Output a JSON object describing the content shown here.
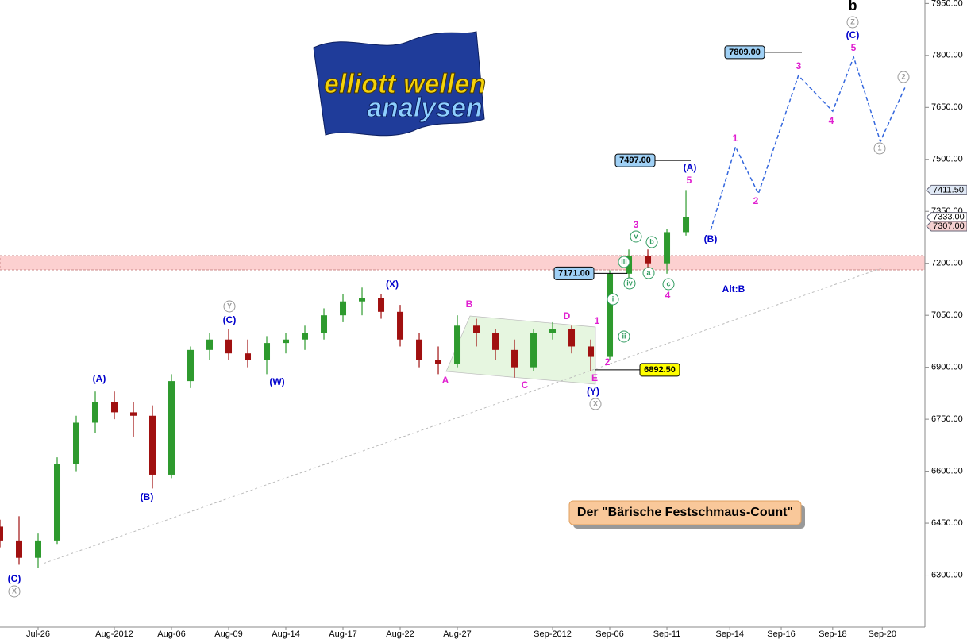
{
  "chart_data": {
    "type": "candlestick",
    "x": [
      -2,
      -1,
      0,
      1,
      2,
      3,
      4,
      5,
      6,
      7,
      8,
      9,
      10,
      11,
      12,
      13,
      14,
      15,
      16,
      17,
      18,
      19,
      20,
      21,
      22,
      23,
      24,
      25,
      26,
      27,
      28,
      29,
      30,
      31,
      32,
      33,
      34
    ],
    "open": [
      6440,
      6400,
      6350,
      6400,
      6620,
      6740,
      6800,
      6770,
      6760,
      6590,
      6860,
      6950,
      6980,
      6940,
      6920,
      6970,
      6980,
      7000,
      7050,
      7090,
      7100,
      7060,
      6980,
      6920,
      6910,
      7020,
      7000,
      6950,
      6900,
      7000,
      7010,
      6960,
      6930,
      7170,
      7220,
      7200,
      7290
    ],
    "high": [
      6460,
      6470,
      6420,
      6640,
      6760,
      6830,
      6830,
      6800,
      6790,
      6880,
      6960,
      7000,
      7010,
      6980,
      6990,
      7000,
      7020,
      7070,
      7110,
      7130,
      7110,
      7080,
      7000,
      6960,
      7050,
      7040,
      7010,
      6980,
      7010,
      7030,
      7020,
      6980,
      7180,
      7240,
      7240,
      7300,
      7411.5
    ],
    "low": [
      6380,
      6330,
      6320,
      6390,
      6600,
      6710,
      6750,
      6700,
      6550,
      6580,
      6840,
      6920,
      6920,
      6900,
      6880,
      6940,
      6950,
      6980,
      7030,
      7050,
      7040,
      6960,
      6900,
      6880,
      6900,
      6960,
      6920,
      6870,
      6890,
      6980,
      6940,
      6890,
      6920,
      7150,
      7180,
      7170,
      7280
    ],
    "close": [
      6400,
      6350,
      6400,
      6620,
      6740,
      6800,
      6770,
      6760,
      6590,
      6860,
      6950,
      6980,
      6940,
      6920,
      6970,
      6980,
      7000,
      7050,
      7090,
      7100,
      7060,
      6980,
      6920,
      6910,
      7020,
      7000,
      6950,
      6900,
      7000,
      7010,
      6960,
      6930,
      7170,
      7220,
      7200,
      7290,
      7333
    ],
    "up_color": "#2e9a2e",
    "down_color": "#a01010",
    "xlim": [
      -2,
      46.54
    ],
    "xticks": [
      {
        "value": 0,
        "label": "Jul-26"
      },
      {
        "value": 4,
        "label": "Aug-2012"
      },
      {
        "value": 7,
        "label": "Aug-06"
      },
      {
        "value": 10,
        "label": "Aug-09"
      },
      {
        "value": 13,
        "label": "Aug-14"
      },
      {
        "value": 16,
        "label": "Aug-17"
      },
      {
        "value": 19,
        "label": "Aug-22"
      },
      {
        "value": 22,
        "label": "Aug-27"
      },
      {
        "value": 27,
        "label": "Sep-2012"
      },
      {
        "value": 30,
        "label": "Sep-06"
      },
      {
        "value": 33,
        "label": "Sep-11"
      },
      {
        "value": 36.3,
        "label": "Sep-14"
      },
      {
        "value": 39,
        "label": "Sep-16"
      },
      {
        "value": 41.7,
        "label": "Sep-18"
      },
      {
        "value": 44.3,
        "label": "Sep-20"
      }
    ],
    "ylim": [
      6150,
      7960
    ],
    "yticks": [
      {
        "value": 6300,
        "label": "6300.00"
      },
      {
        "value": 6450,
        "label": "6450.00"
      },
      {
        "value": 6600,
        "label": "6600.00"
      },
      {
        "value": 6750,
        "label": "6750.00"
      },
      {
        "value": 6900,
        "label": "6900.00"
      },
      {
        "value": 7050,
        "label": "7050.00"
      },
      {
        "value": 7200,
        "label": "7200.00"
      },
      {
        "value": 7350,
        "label": "7350.00"
      },
      {
        "value": 7500,
        "label": "7500.00"
      },
      {
        "value": 7650,
        "label": "7650.00"
      },
      {
        "value": 7800,
        "label": "7800.00"
      },
      {
        "value": 7950,
        "label": "7950.00"
      }
    ],
    "price_tags": [
      {
        "value": 7411.5,
        "label": "7411.50",
        "color": "#dfe8f5"
      },
      {
        "value": 7333,
        "label": "7333.00",
        "color": "#ffffff"
      },
      {
        "value": 7307,
        "label": "7307.00",
        "color": "#f5d0d0"
      }
    ],
    "levels": [
      {
        "value": 7809,
        "label": "7809.00",
        "color": "#9fd0f5"
      },
      {
        "value": 7497,
        "label": "7497.00",
        "color": "#9fd0f5"
      },
      {
        "value": 7171,
        "label": "7171.00",
        "color": "#9fd0f5"
      },
      {
        "value": 6892.5,
        "label": "6892.50",
        "color": "#ffff00"
      }
    ],
    "forecast": {
      "x": [
        35.3,
        36.6,
        37.8,
        39.9,
        41.7,
        42.8,
        44.2,
        45.5
      ],
      "values": [
        7296,
        7536,
        7401,
        7742,
        7639,
        7795,
        7552,
        7708
      ],
      "color": "#3366dd"
    },
    "trendline": {
      "x": [
        0.3,
        44.25
      ],
      "values": [
        6334,
        7186
      ],
      "color": "#bbbbbb"
    },
    "wave_labels": [
      {
        "text": "(C)",
        "color": "#0000cc"
      },
      {
        "text": "X",
        "color": "#999999",
        "circle": true
      },
      {
        "text": "(A)",
        "color": "#0000cc"
      },
      {
        "text": "(B)",
        "color": "#0000cc"
      },
      {
        "text": "Y",
        "color": "#999999",
        "circle": true
      },
      {
        "text": "(C)",
        "color": "#0000cc"
      },
      {
        "text": "(W)",
        "color": "#0000cc"
      },
      {
        "text": "(X)",
        "color": "#0000cc"
      },
      {
        "text": "A",
        "color": "#e020d0"
      },
      {
        "text": "B",
        "color": "#e020d0"
      },
      {
        "text": "C",
        "color": "#e020d0"
      },
      {
        "text": "D",
        "color": "#e020d0"
      },
      {
        "text": "E",
        "color": "#e020d0"
      },
      {
        "text": "(Y)",
        "color": "#0000cc"
      },
      {
        "text": "X",
        "color": "#999999",
        "circle": true
      },
      {
        "text": "1",
        "color": "#e020d0"
      },
      {
        "text": "2",
        "color": "#e020d0"
      },
      {
        "text": "i",
        "color": "#2e9a5e",
        "circle": true
      },
      {
        "text": "ii",
        "color": "#2e9a5e",
        "circle": true
      },
      {
        "text": "iii",
        "color": "#2e9a5e",
        "circle": true
      },
      {
        "text": "iv",
        "color": "#2e9a5e",
        "circle": true
      },
      {
        "text": "v",
        "color": "#2e9a5e",
        "circle": true
      },
      {
        "text": "3",
        "color": "#e020d0"
      },
      {
        "text": "a",
        "color": "#2e9a5e",
        "circle": true
      },
      {
        "text": "b",
        "color": "#2e9a5e",
        "circle": true
      },
      {
        "text": "c",
        "color": "#2e9a5e",
        "circle": true
      },
      {
        "text": "4",
        "color": "#e020d0"
      },
      {
        "text": "(A)",
        "color": "#0000cc"
      },
      {
        "text": "5",
        "color": "#e020d0"
      },
      {
        "text": "(B)",
        "color": "#0000cc"
      },
      {
        "text": "Alt:B",
        "color": "#0000cc"
      },
      {
        "text": "1",
        "color": "#e020d0"
      },
      {
        "text": "2",
        "color": "#e020d0"
      },
      {
        "text": "3",
        "color": "#e020d0"
      },
      {
        "text": "4",
        "color": "#e020d0"
      },
      {
        "text": "5",
        "color": "#e020d0"
      },
      {
        "text": "(C)",
        "color": "#0000cc"
      },
      {
        "text": "Z",
        "color": "#999999",
        "circle": true
      },
      {
        "text": "1",
        "color": "#999999",
        "circle": true
      },
      {
        "text": "2",
        "color": "#999999",
        "circle": true
      },
      {
        "text": "b",
        "color": "#000000"
      }
    ],
    "caption": "Der \"Bärische Festschmaus-Count\"",
    "logo": [
      "elliott wellen",
      "analysen"
    ]
  }
}
